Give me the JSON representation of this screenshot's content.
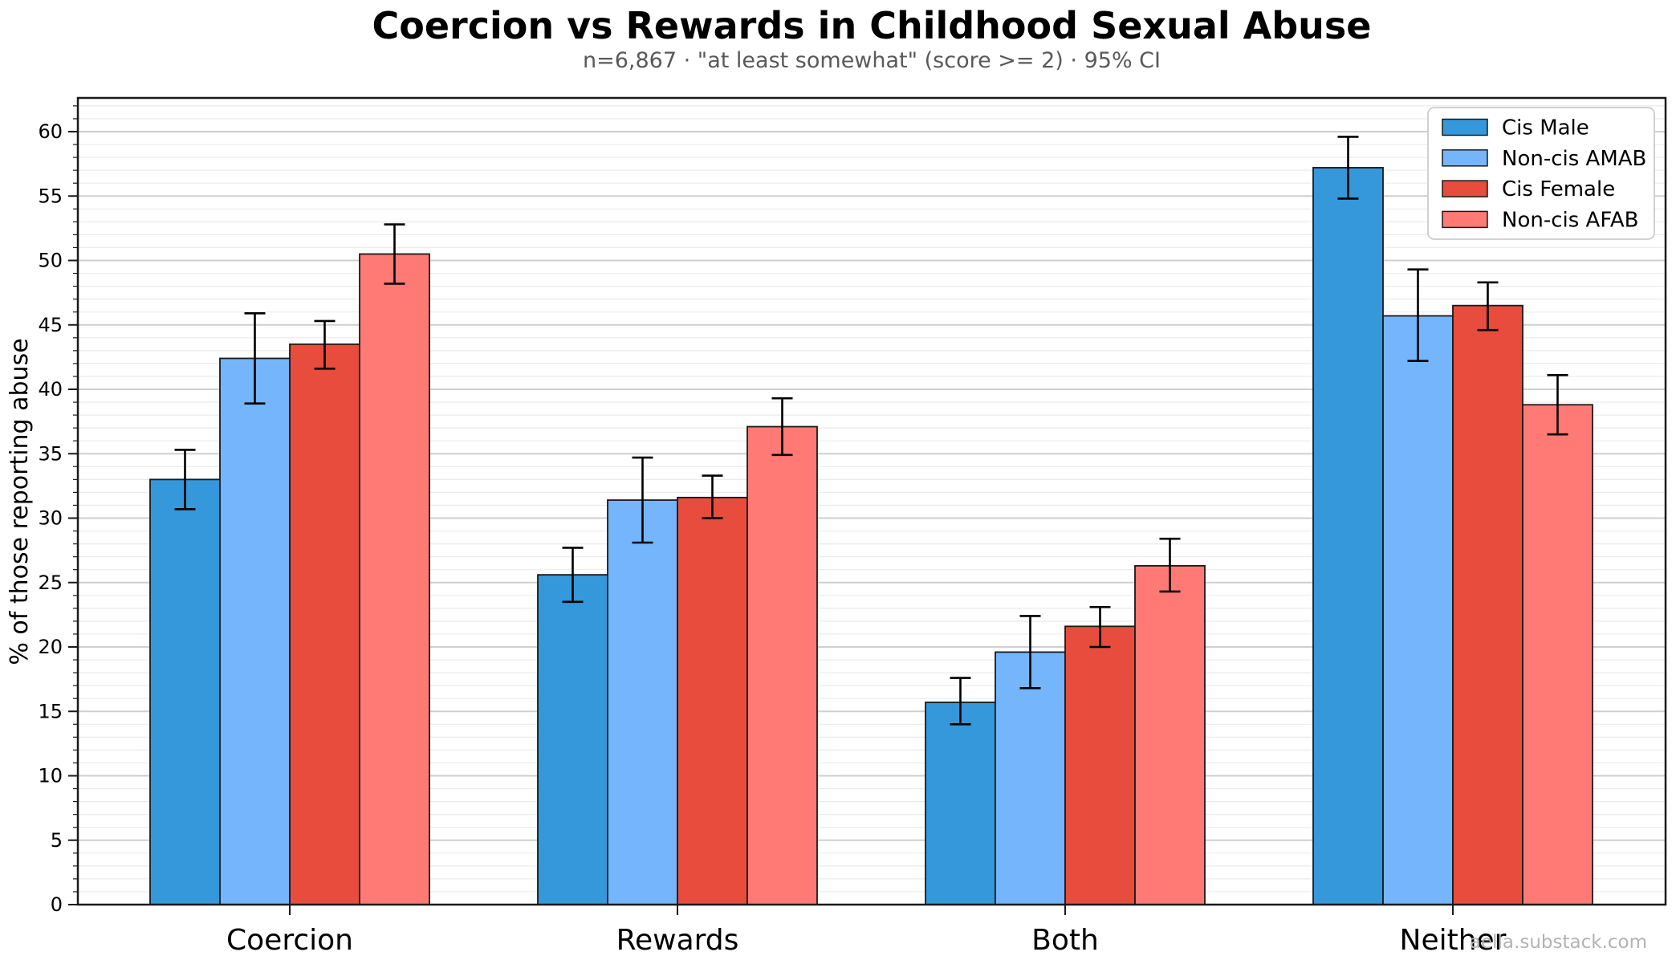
{
  "page": {
    "watermark": "aella.substack.com"
  },
  "chart_data": {
    "type": "bar",
    "title": "Coercion vs Rewards in Childhood Sexual Abuse",
    "subtitle": "n=6,867 · \"at least somewhat\" (score >= 2) · 95% CI",
    "ylabel": "% of those reporting abuse",
    "xlabel": "",
    "ylim": [
      0,
      62.6
    ],
    "grid": true,
    "legend_position": "upper right",
    "error_bars": "95% CI",
    "categories": [
      "Coercion",
      "Rewards",
      "Both",
      "Neither"
    ],
    "y_tick_labels": [
      "0",
      "5",
      "10",
      "15",
      "20",
      "25",
      "30",
      "35",
      "40",
      "45",
      "50",
      "55",
      "60"
    ],
    "series": [
      {
        "name": "Cis Male",
        "color": "#3498DB",
        "values": [
          33.0,
          25.6,
          15.7,
          57.2
        ],
        "ci_low": [
          30.7,
          23.5,
          14.0,
          54.8
        ],
        "ci_high": [
          35.3,
          27.7,
          17.6,
          59.6
        ]
      },
      {
        "name": "Non-cis AMAB",
        "color": "#74B5FC",
        "values": [
          42.4,
          31.4,
          19.6,
          45.7
        ],
        "ci_low": [
          38.9,
          28.1,
          16.8,
          42.2
        ],
        "ci_high": [
          45.9,
          34.7,
          22.4,
          49.3
        ]
      },
      {
        "name": "Cis Female",
        "color": "#E74C3C",
        "values": [
          43.5,
          31.6,
          21.6,
          46.5
        ],
        "ci_low": [
          41.6,
          30.0,
          20.0,
          44.6
        ],
        "ci_high": [
          45.3,
          33.3,
          23.1,
          48.3
        ]
      },
      {
        "name": "Non-cis AFAB",
        "color": "#FF7A75",
        "values": [
          50.5,
          37.1,
          26.3,
          38.8
        ],
        "ci_low": [
          48.2,
          34.9,
          24.3,
          36.5
        ],
        "ci_high": [
          52.8,
          39.3,
          28.4,
          41.1
        ]
      }
    ],
    "style": {
      "bar_edge_color": "#1a1a1a",
      "major_grid_color": "#cfcfcf",
      "minor_grid_color": "#ebebeb",
      "subtitle_color": "#595959",
      "watermark_color": "#b3b3b3",
      "errorbar_color": "#000000"
    }
  }
}
